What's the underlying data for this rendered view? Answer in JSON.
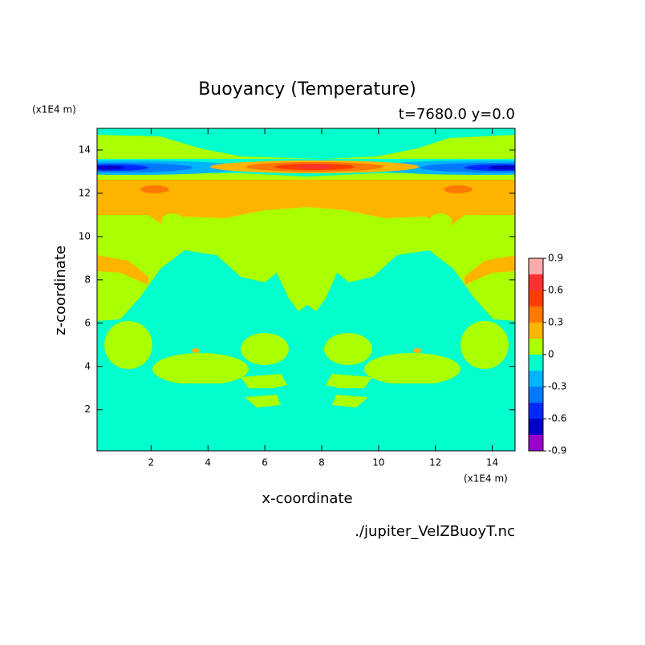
{
  "chart_data": {
    "type": "contour",
    "title": "Buoyancy (Temperature)",
    "subtitle": "t=7680.0 y=0.0",
    "xlabel": "x-coordinate",
    "ylabel": "z-coordinate",
    "x_unit": "(x1E4 m)",
    "y_unit": "(x1E4 m)",
    "source": "./jupiter_VelZBuoyT.nc",
    "xlim": [
      0.1,
      14.8
    ],
    "ylim": [
      0.1,
      15.0
    ],
    "xticks": [
      2,
      4,
      6,
      8,
      10,
      12,
      14
    ],
    "yticks": [
      2,
      4,
      6,
      8,
      10,
      12,
      14
    ],
    "levels": [
      -0.9,
      -0.75,
      -0.6,
      -0.45,
      -0.3,
      -0.15,
      0,
      0.15,
      0.3,
      0.45,
      0.6,
      0.75,
      0.9
    ],
    "colors": [
      "#9900cc",
      "#0000c8",
      "#0028ff",
      "#0078ff",
      "#00b4ff",
      "#00ffcc",
      "#aaff00",
      "#ffb400",
      "#ff7800",
      "#ff3c00",
      "#ff3030",
      "#ffaaaa"
    ],
    "colorbar_ticks": [
      -0.9,
      -0.6,
      -0.3,
      0,
      0.3,
      0.6,
      0.9
    ]
  }
}
